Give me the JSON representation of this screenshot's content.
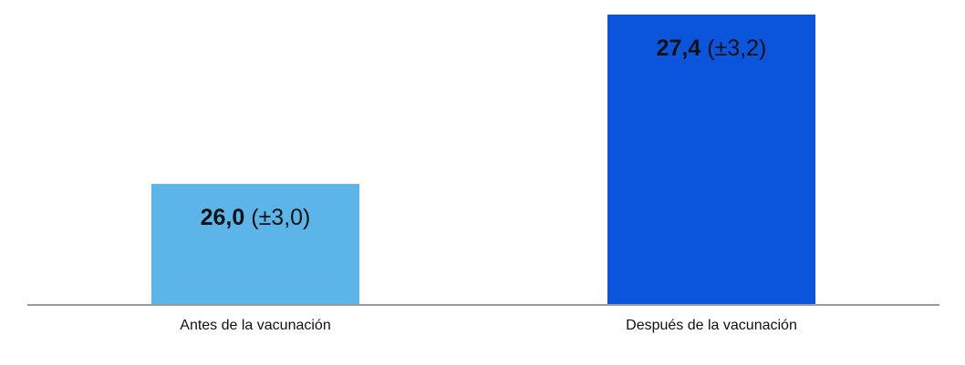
{
  "chart_data": {
    "type": "bar",
    "categories": [
      "Antes de la vacunación",
      "Después de la vacunación"
    ],
    "values": [
      26.0,
      27.4
    ],
    "value_labels": [
      "26,0",
      "27,4"
    ],
    "errors": [
      3.0,
      3.2
    ],
    "error_labels": [
      "(±3,0)",
      "(±3,2)"
    ],
    "colors": [
      "#5bb5e8",
      "#0a55dc"
    ],
    "ylim": [
      25,
      27.4
    ],
    "grid": false
  }
}
